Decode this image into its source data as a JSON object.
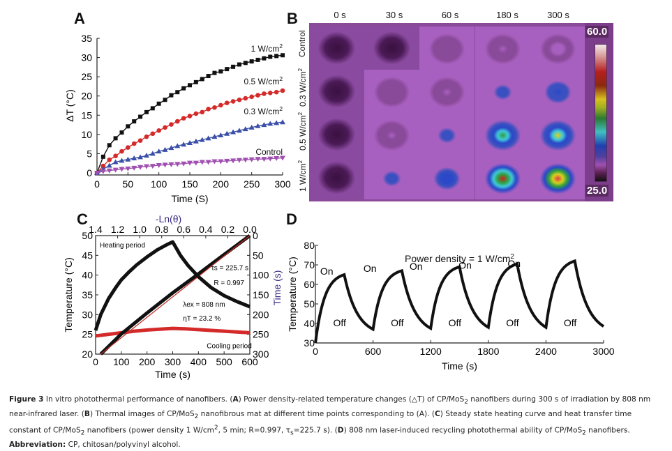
{
  "panels": {
    "A": {
      "letter": "A"
    },
    "B": {
      "letter": "B"
    },
    "C": {
      "letter": "C"
    },
    "D": {
      "letter": "D"
    }
  },
  "chart_data": [
    {
      "id": "A",
      "type": "line",
      "title": "",
      "xlabel": "Time (S)",
      "ylabel": "ΔT (°C)",
      "xlim": [
        0,
        300
      ],
      "ylim": [
        0,
        35
      ],
      "xticks": [
        0,
        50,
        100,
        150,
        200,
        250,
        300
      ],
      "yticks": [
        0,
        5,
        10,
        15,
        20,
        25,
        30,
        35
      ],
      "x": [
        0,
        10,
        20,
        30,
        40,
        50,
        60,
        70,
        80,
        90,
        100,
        110,
        120,
        130,
        140,
        150,
        160,
        170,
        180,
        190,
        200,
        210,
        220,
        230,
        240,
        250,
        260,
        270,
        280,
        290,
        300
      ],
      "series": [
        {
          "name": "1 W/cm²",
          "label": "1 W/cm2",
          "color": "#111111",
          "marker": "square",
          "values": [
            0,
            4.2,
            7.2,
            9.0,
            10.5,
            12.1,
            13.4,
            14.6,
            15.8,
            16.8,
            18.0,
            19.0,
            20.2,
            21.0,
            22.0,
            22.8,
            23.6,
            24.4,
            25.2,
            26.0,
            26.4,
            27.0,
            27.6,
            28.2,
            28.6,
            29.0,
            29.4,
            29.8,
            30.2,
            30.4,
            30.6
          ]
        },
        {
          "name": "0.5 W/cm²",
          "label": "0.5 W/cm2",
          "color": "#d42a2a",
          "marker": "circle",
          "values": [
            0,
            1.8,
            3.4,
            4.4,
            5.6,
            6.6,
            7.6,
            8.4,
            9.4,
            10.2,
            11.0,
            11.8,
            12.6,
            13.4,
            14.2,
            14.8,
            15.4,
            15.8,
            16.6,
            17.0,
            17.6,
            18.2,
            18.6,
            19.0,
            19.4,
            19.8,
            20.2,
            20.6,
            20.8,
            21.0,
            21.4
          ]
        },
        {
          "name": "0.3 W/cm²",
          "label": "0.3 W/cm2",
          "color": "#3a4fa8",
          "marker": "triangle-up",
          "values": [
            0,
            1.0,
            1.9,
            2.8,
            3.2,
            3.5,
            3.8,
            4.1,
            4.5,
            5.0,
            5.6,
            6.0,
            6.5,
            7.0,
            7.4,
            7.8,
            8.2,
            8.6,
            9.0,
            9.4,
            9.8,
            10.2,
            10.6,
            11.0,
            11.4,
            11.8,
            12.2,
            12.5,
            12.8,
            13.0,
            13.2
          ]
        },
        {
          "name": "Control",
          "label": "Control",
          "color": "#a050b0",
          "marker": "triangle-down",
          "values": [
            0,
            0.4,
            0.6,
            0.8,
            1.0,
            1.1,
            1.3,
            1.5,
            1.7,
            1.8,
            2.0,
            2.1,
            2.2,
            2.3,
            2.4,
            2.6,
            2.6,
            2.8,
            2.8,
            3.0,
            3.0,
            3.1,
            3.2,
            3.3,
            3.4,
            3.5,
            3.6,
            3.6,
            3.7,
            3.8,
            3.9
          ]
        }
      ]
    },
    {
      "id": "B",
      "type": "heatmap",
      "columns": [
        "0 s",
        "30 s",
        "60 s",
        "180 s",
        "300 s"
      ],
      "rows": [
        "Control",
        "0.3 W/cm2",
        "0.5 W/cm2",
        "1 W/cm2"
      ],
      "colorbar": {
        "max": "60.0",
        "min": "25.0"
      },
      "intensity": [
        [
          0.0,
          0.0,
          0.05,
          0.15,
          0.18
        ],
        [
          0.02,
          0.1,
          0.15,
          0.3,
          0.38
        ],
        [
          0.0,
          0.15,
          0.28,
          0.58,
          0.68
        ],
        [
          0.02,
          0.28,
          0.45,
          0.8,
          0.92
        ]
      ]
    },
    {
      "id": "C",
      "type": "line",
      "xlabel": "Time (s)",
      "ylabel": "Temperature (°C)",
      "top_xlabel": "-Ln(θ)",
      "right_ylabel": "Time (s)",
      "xlim": [
        0,
        600
      ],
      "ylim": [
        20,
        50
      ],
      "top_xlim": [
        1.4,
        0.0
      ],
      "right_ylim": [
        300,
        0
      ],
      "xticks": [
        0,
        100,
        200,
        300,
        400,
        500,
        600
      ],
      "yticks": [
        20,
        25,
        30,
        35,
        40,
        45,
        50
      ],
      "top_xticks": [
        "1.4",
        "1.2",
        "1.0",
        "0.8",
        "0.6",
        "0.4",
        "0.2",
        "0.0"
      ],
      "right_yticks": [
        "0",
        "50",
        "100",
        "150",
        "200",
        "250",
        "300"
      ],
      "annotations": {
        "heating": "Heating period",
        "cooling": "Cooling period",
        "tau": "τs = 225.7 s",
        "r": "R = 0.997",
        "lambda": "λex = 808 nm",
        "eta": "ηT = 23.2 %"
      },
      "series": [
        {
          "name": "Heating/cooling curve",
          "color": "#111111",
          "x": [
            0,
            20,
            50,
            80,
            100,
            130,
            160,
            200,
            240,
            280,
            300,
            330,
            360,
            400,
            450,
            500,
            550,
            600
          ],
          "values": [
            26,
            30,
            34,
            37,
            38.8,
            40.8,
            42.6,
            44.6,
            46.4,
            47.8,
            48.4,
            45.0,
            42.4,
            39.6,
            36.8,
            34.8,
            33.3,
            32.0
          ]
        },
        {
          "name": "Control",
          "color": "#d42a2a",
          "x": [
            0,
            50,
            100,
            150,
            200,
            250,
            300,
            350,
            400,
            450,
            500,
            550,
            600
          ],
          "values": [
            24.6,
            25.0,
            25.4,
            25.8,
            26.1,
            26.3,
            26.5,
            26.4,
            26.2,
            26.0,
            25.8,
            25.6,
            25.4
          ]
        },
        {
          "name": "-Ln(θ) vs Time (linear fit)",
          "color": "#111111",
          "fit_color": "#c0302a",
          "x": [
            20,
            100,
            200,
            300,
            400,
            500,
            600
          ],
          "values": [
            20,
            25.1,
            30.4,
            35.5,
            40.3,
            45.2,
            50
          ]
        }
      ]
    },
    {
      "id": "D",
      "type": "line",
      "xlabel": "Time (s)",
      "ylabel": "Temperature (°C)",
      "title": "Power density = 1 W/cm2",
      "xlim": [
        0,
        3000
      ],
      "ylim": [
        30,
        80
      ],
      "xticks": [
        0,
        600,
        1200,
        1800,
        2400,
        3000
      ],
      "yticks": [
        30,
        40,
        50,
        60,
        70,
        80
      ],
      "on_label": "On",
      "off_label": "Off",
      "cycles": [
        {
          "start": 0,
          "peak_time": 300,
          "start_temp": 30,
          "peak": 65,
          "end": 37
        },
        {
          "start": 600,
          "peak_time": 900,
          "start_temp": 37,
          "peak": 67,
          "end": 37.5
        },
        {
          "start": 1200,
          "peak_time": 1500,
          "start_temp": 37.5,
          "peak": 69,
          "end": 38
        },
        {
          "start": 1800,
          "peak_time": 2100,
          "start_temp": 38,
          "peak": 70.5,
          "end": 38
        },
        {
          "start": 2400,
          "peak_time": 2700,
          "start_temp": 38,
          "peak": 72,
          "end": 38.5
        }
      ]
    }
  ],
  "caption": {
    "fig_label": "Figure 3",
    "line1_a": " In vitro photothermal performance of nanofibers. (",
    "A": "A",
    "line1_b": ") Power density-related temperature changes (△T) of CP/MoS",
    "sub2": "2",
    "line1_c": " nanofibers during 300 s of irradiation by 808 nm near-infrared laser. (",
    "B": "B",
    "line2_a": ") Thermal images of CP/MoS",
    "line2_b": " nanofibrous mat at different time points corresponding to (A). (",
    "C": "C",
    "line2_c": ") Steady state heating curve and heat transfer time constant of CP/MoS",
    "line3_a": " nanofibers (power density 1 W/cm",
    "sup2": "2",
    "line3_b": ", 5 min; R=0.997, τ",
    "sub_s": "s",
    "line3_c": "=225.7 s). (",
    "D": "D",
    "line3_d": ") 808 nm laser-induced recycling photothermal ability of CP/MoS",
    "line3_e": " nanofibers.",
    "abbr_label": "Abbreviation:",
    "abbr_text": " CP, chitosan/polyvinyl alcohol."
  }
}
